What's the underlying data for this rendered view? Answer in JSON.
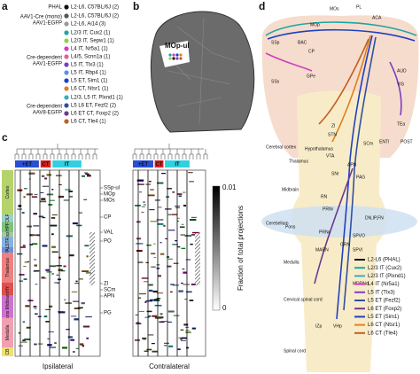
{
  "panel_a": {
    "label": "a",
    "groups": [
      {
        "label": [
          "PHAL"
        ],
        "items": [
          {
            "text": "L2-L6, C57BL/6J (2)",
            "color": "#111111"
          }
        ]
      },
      {
        "label": [
          "AAV1-Cre (mono)",
          "AAV1-EGFP"
        ],
        "items": [
          {
            "text": "L2-L6, C57BL/6J (2)",
            "color": "#555555"
          },
          {
            "text": "L2-L6, Ai14 (3)",
            "color": "#999999"
          }
        ]
      },
      {
        "label": [
          "Cre-dependent",
          "AAV1-EGFP"
        ],
        "items": [
          {
            "text": "L2/3 IT, Cux2 (1)",
            "color": "#1aa6a6"
          },
          {
            "text": "L2/3 IT, Sepw1 (1)",
            "color": "#8fd14f"
          },
          {
            "text": "L4 IT, Nr5a1 (1)",
            "color": "#d03fbf"
          },
          {
            "text": "L4/5, Scnn1a (1)",
            "color": "#e0609a"
          },
          {
            "text": "L5 IT, Tlx3 (1)",
            "color": "#7a3fbf"
          },
          {
            "text": "L5 IT, Rbp4 (1)",
            "color": "#5b8ff0"
          },
          {
            "text": "L5 ET, Sim1 (1)",
            "color": "#2040c0"
          },
          {
            "text": "L6 CT, Ntsr1 (1)",
            "color": "#e08020"
          }
        ]
      },
      {
        "label": [
          "Cre-dependent",
          "AAV8-EGFP"
        ],
        "items": [
          {
            "text": "L2/3, L5 IT, Plxnd1 (1)",
            "color": "#30b0c0"
          },
          {
            "text": "L5 L6 ET, Fezf2 (2)",
            "color": "#3050a0"
          },
          {
            "text": "L6 ET CT, Foxp2 (2)",
            "color": "#6a3a90"
          },
          {
            "text": "L6 CT, Tle4 (1)",
            "color": "#c06020"
          }
        ]
      }
    ]
  },
  "panel_b": {
    "label": "b",
    "region": "MOp-ul"
  },
  "panel_c": {
    "label": "c",
    "column_groups": [
      {
        "text": "+ET",
        "color": "#2a4fd0"
      },
      {
        "text": "CT",
        "color": "#e02020"
      },
      {
        "text": "IT",
        "color": "#30d0e0"
      }
    ],
    "row_groups": [
      {
        "text": "Cortex",
        "color": "#b5d36b"
      },
      {
        "text": "OLF",
        "color": "#9ad0c8"
      },
      {
        "text": "HPF",
        "color": "#7ec27e"
      },
      {
        "text": "sp",
        "color": "#a8c8a0"
      },
      {
        "text": "STR",
        "color": "#86b3e0"
      },
      {
        "text": "PAL",
        "color": "#6f8fd0"
      },
      {
        "text": "Thalamus",
        "color": "#f08080"
      },
      {
        "text": "HY",
        "color": "#e05050"
      },
      {
        "text": "Pons Midbrain",
        "color": "#d070d0"
      },
      {
        "text": "Medulla",
        "color": "#f0a0b0"
      },
      {
        "text": "CB",
        "color": "#f0e070"
      }
    ],
    "regions": [
      "SSp-ul",
      "MOp",
      "MOs",
      "CP",
      "VAL",
      "PO",
      "ZI",
      "SCm",
      "APN",
      "PG"
    ],
    "colorbar": {
      "max": "0.01",
      "min": "0",
      "title": "Fraction of total projections"
    },
    "sides": [
      "Ipsilateral",
      "Contralateral"
    ]
  },
  "panel_d": {
    "label": "d",
    "regions": [
      "MOs",
      "MOp",
      "PL",
      "ACA",
      "SSp",
      "SSs",
      "AUD",
      "VIS",
      "TEa",
      "ENTl",
      "POST",
      "CP",
      "BAC",
      "GPe",
      "Cerebral cortex",
      "Thalamus",
      "Hypothalamus",
      "Midbrain",
      "RN",
      "VTA",
      "APN",
      "SNr",
      "STN",
      "ZI",
      "PAG",
      "SCm",
      "Cerebellum",
      "DN,IP,FN",
      "Pons",
      "PRNr",
      "PRNc",
      "Medulla",
      "GRN",
      "MARN",
      "SPVO",
      "SPVI",
      "MDRNd",
      "Cervical spinal cord",
      "IZp",
      "VHp",
      "Spinal cord"
    ],
    "legend": [
      {
        "text": "L2-L6 (PHAL)",
        "color": "#111111"
      },
      {
        "text": "L2/3 IT (Cux2)",
        "color": "#1aa6a6"
      },
      {
        "text": "L2/3 IT (Plxnd1)",
        "color": "#30b0c0"
      },
      {
        "text": "L4 IT (Nr5a1)",
        "color": "#d03fbf"
      },
      {
        "text": "L5 IT (Tlx3)",
        "color": "#7a3fbf"
      },
      {
        "text": "L5 ET (Fezf2)",
        "color": "#3050a0"
      },
      {
        "text": "L6 ET (Foxp2)",
        "color": "#6a3a90"
      },
      {
        "text": "L5 ET (Sim1)",
        "color": "#2040c0"
      },
      {
        "text": "L6 CT (Ntsr1)",
        "color": "#e08020"
      },
      {
        "text": "L6 CT (Tle4)",
        "color": "#c06020"
      }
    ]
  }
}
